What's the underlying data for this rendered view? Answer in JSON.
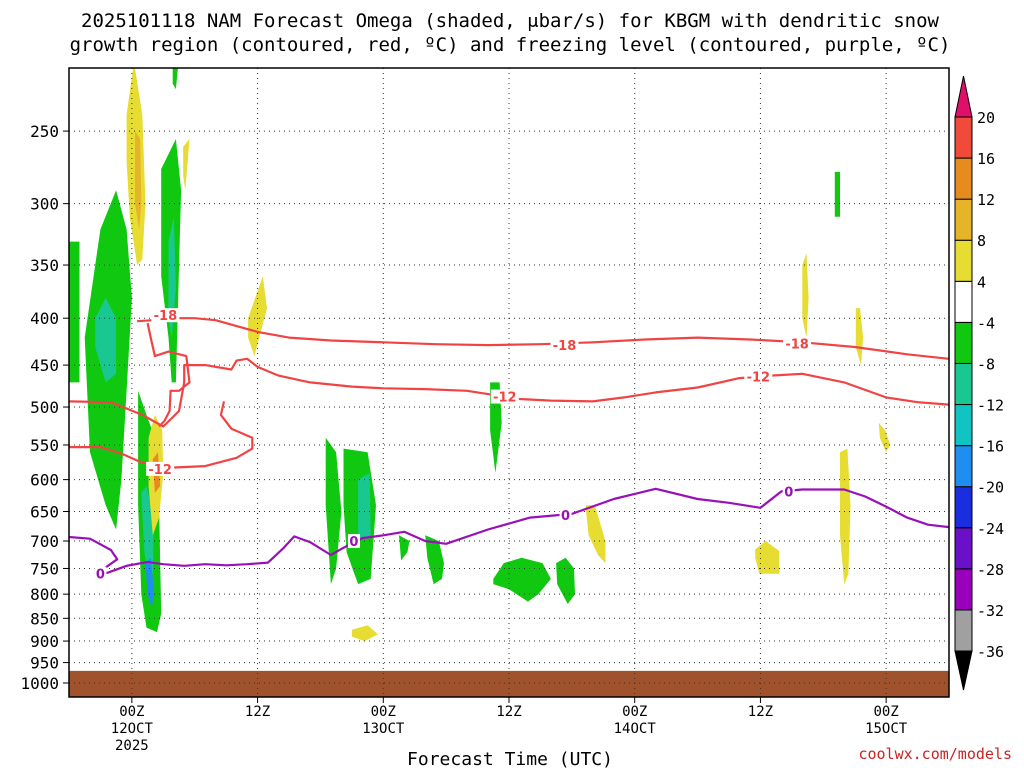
{
  "chart_data": {
    "type": "heatmap",
    "title_line1": "2025101118 NAM Forecast Omega (shaded, μbar/s) for KBGM with dendritic snow",
    "title_line2": "growth region (contoured, red, ºC) and freezing level (contoured, purple, ºC)",
    "xlabel": "Forecast Time (UTC)",
    "credit": "coolwx.com/models",
    "x_ticks": [
      {
        "hour": 6,
        "label": "00Z",
        "sub": "12OCT",
        "sub2": "2025"
      },
      {
        "hour": 18,
        "label": "12Z",
        "sub": "",
        "sub2": ""
      },
      {
        "hour": 30,
        "label": "00Z",
        "sub": "13OCT",
        "sub2": ""
      },
      {
        "hour": 42,
        "label": "12Z",
        "sub": "",
        "sub2": ""
      },
      {
        "hour": 54,
        "label": "00Z",
        "sub": "14OCT",
        "sub2": ""
      },
      {
        "hour": 66,
        "label": "12Z",
        "sub": "",
        "sub2": ""
      },
      {
        "hour": 78,
        "label": "00Z",
        "sub": "15OCT",
        "sub2": ""
      }
    ],
    "xlim": [
      0,
      84
    ],
    "ylim": [
      1000,
      200
    ],
    "y_scale": "log-pressure",
    "y_ticks": [
      250,
      300,
      350,
      400,
      450,
      500,
      550,
      600,
      650,
      700,
      750,
      800,
      850,
      900,
      950,
      1000
    ],
    "grid": true,
    "colorbar": {
      "levels": [
        -36,
        -32,
        -28,
        -24,
        -20,
        -16,
        -12,
        -8,
        -4,
        4,
        8,
        12,
        16,
        20
      ],
      "colors": [
        "#a0a0a0",
        "#9900bb",
        "#6a10c8",
        "#1a2ee0",
        "#1e8ef0",
        "#10c4c4",
        "#18c890",
        "#10c810",
        "#ffffff",
        "#e6dc32",
        "#e6b428",
        "#e68c1e",
        "#f04a3a"
      ],
      "under_color": "#000000",
      "over_color": "#e0106a"
    },
    "shading": [
      {
        "color": "#10c810",
        "x": [
          0,
          1,
          1,
          0
        ],
        "p": [
          330,
          330,
          470,
          470
        ]
      },
      {
        "color": "#10c810",
        "x": [
          1.5,
          3,
          4.5,
          5.5,
          6,
          5.5,
          5,
          4.5,
          3.5,
          2,
          1.5
        ],
        "p": [
          420,
          320,
          290,
          320,
          380,
          480,
          600,
          680,
          640,
          560,
          420
        ]
      },
      {
        "color": "#18c890",
        "x": [
          2.5,
          3.5,
          4.5,
          4.5,
          3.5,
          2.5
        ],
        "p": [
          400,
          380,
          400,
          460,
          470,
          430
        ]
      },
      {
        "color": "#e6dc32",
        "x": [
          5.5,
          6.2,
          7,
          7.3,
          7,
          6.5,
          5.8,
          5.5
        ],
        "p": [
          240,
          210,
          240,
          300,
          345,
          350,
          310,
          270
        ]
      },
      {
        "color": "#e6b428",
        "x": [
          6.3,
          6.8,
          6.9,
          6.7,
          6.3
        ],
        "p": [
          250,
          255,
          300,
          320,
          300
        ]
      },
      {
        "color": "#10c810",
        "x": [
          8.8,
          10.2,
          10.7,
          10.2,
          9.8,
          9.5,
          8.8
        ],
        "p": [
          275,
          255,
          290,
          470,
          470,
          420,
          360
        ]
      },
      {
        "color": "#18c890",
        "x": [
          9.5,
          10.0,
          10.2,
          9.8,
          9.5
        ],
        "p": [
          330,
          310,
          370,
          420,
          400
        ]
      },
      {
        "color": "#10c810",
        "x": [
          9.9,
          10.2,
          10.4,
          10.2,
          9.9
        ],
        "p": [
          208,
          205,
          213,
          225,
          222
        ]
      },
      {
        "color": "#e6dc32",
        "x": [
          10.9,
          11.5,
          11.1,
          10.9
        ],
        "p": [
          260,
          255,
          290,
          280
        ]
      },
      {
        "color": "#10c810",
        "x": [
          6.6,
          7.4,
          8.2,
          8.6,
          8.8,
          8.4,
          7.4,
          6.9,
          6.6
        ],
        "p": [
          480,
          510,
          540,
          640,
          840,
          880,
          870,
          800,
          640
        ]
      },
      {
        "color": "#18c890",
        "x": [
          6.9,
          7.4,
          8.1,
          8.0,
          7.6,
          7.2
        ],
        "p": [
          620,
          610,
          660,
          760,
          770,
          720
        ]
      },
      {
        "color": "#1e8ef0",
        "x": [
          7.3,
          7.8,
          8.1,
          7.9,
          7.5
        ],
        "p": [
          740,
          730,
          790,
          830,
          800
        ]
      },
      {
        "color": "#e6dc32",
        "x": [
          7.6,
          8.2,
          8.9,
          9.0,
          8.6,
          8.0,
          7.6
        ],
        "p": [
          540,
          510,
          530,
          590,
          660,
          690,
          610
        ]
      },
      {
        "color": "#e68c1e",
        "x": [
          8.0,
          8.5,
          8.7,
          8.2
        ],
        "p": [
          570,
          560,
          610,
          620
        ]
      },
      {
        "color": "#e6dc32",
        "x": [
          17.1,
          18.5,
          18.9,
          17.7,
          17.1
        ],
        "p": [
          400,
          360,
          390,
          440,
          420
        ]
      },
      {
        "color": "#10c810",
        "x": [
          24.5,
          25.5,
          26,
          25.5,
          25,
          24.5
        ],
        "p": [
          540,
          560,
          650,
          750,
          780,
          640
        ]
      },
      {
        "color": "#10c810",
        "x": [
          26.2,
          28.5,
          29.3,
          28.8,
          27.6,
          26.5,
          26.2
        ],
        "p": [
          555,
          560,
          640,
          770,
          780,
          720,
          640
        ]
      },
      {
        "color": "#18c890",
        "x": [
          27.6,
          28.7,
          28.8,
          27.6
        ],
        "p": [
          600,
          590,
          690,
          700
        ]
      },
      {
        "color": "#e6dc32",
        "x": [
          27,
          28.5,
          29.5,
          28.2,
          27
        ],
        "p": [
          875,
          865,
          885,
          900,
          890
        ]
      },
      {
        "color": "#10c810",
        "x": [
          31.5,
          32.5,
          32.3,
          31.7
        ],
        "p": [
          690,
          700,
          720,
          735
        ]
      },
      {
        "color": "#10c810",
        "x": [
          34,
          35.3,
          35.8,
          35.6,
          34.8,
          34.2
        ],
        "p": [
          690,
          700,
          740,
          770,
          780,
          730
        ]
      },
      {
        "color": "#10c810",
        "x": [
          40.2,
          41.1,
          41.3,
          40.7,
          40.2
        ],
        "p": [
          470,
          470,
          520,
          590,
          530
        ]
      },
      {
        "color": "#10c810",
        "x": [
          40.5,
          41.5,
          43.2,
          45.2,
          46,
          44.8,
          43.8,
          42,
          40.5
        ],
        "p": [
          770,
          740,
          730,
          740,
          770,
          800,
          815,
          790,
          780
        ]
      },
      {
        "color": "#10c810",
        "x": [
          46.5,
          47.4,
          48.2,
          48.3,
          47.6,
          46.6
        ],
        "p": [
          740,
          730,
          750,
          800,
          820,
          780
        ]
      },
      {
        "color": "#e6dc32",
        "x": [
          49.3,
          50.2,
          51.2,
          51.2,
          50.5,
          49.6
        ],
        "p": [
          640,
          640,
          700,
          740,
          725,
          690
        ]
      },
      {
        "color": "#e6dc32",
        "x": [
          65.5,
          66.5,
          67.8,
          67.8,
          65.9,
          65.5
        ],
        "p": [
          715,
          700,
          718,
          760,
          760,
          730
        ]
      },
      {
        "color": "#e6dc32",
        "x": [
          70,
          70.4,
          70.6,
          70.4,
          70.0
        ],
        "p": [
          350,
          340,
          380,
          420,
          400
        ]
      },
      {
        "color": "#10c810",
        "x": [
          73.1,
          73.6,
          73.6,
          73.1
        ],
        "p": [
          277,
          277,
          310,
          310
        ]
      },
      {
        "color": "#e6dc32",
        "x": [
          75.1,
          75.5,
          75.8,
          75.6,
          75.1
        ],
        "p": [
          390,
          390,
          420,
          450,
          430
        ]
      },
      {
        "color": "#e6dc32",
        "x": [
          73.6,
          74.3,
          74.6,
          74.4,
          74.0,
          73.6
        ],
        "p": [
          560,
          555,
          640,
          760,
          780,
          690
        ]
      },
      {
        "color": "#e6dc32",
        "x": [
          77.3,
          77.9,
          78.4,
          78.0,
          77.4
        ],
        "p": [
          520,
          530,
          550,
          560,
          540
        ]
      }
    ],
    "surface": {
      "color": "#a0522d",
      "p_top": 970
    },
    "contours": [
      {
        "name": "-18",
        "color": "#f04444",
        "x": [
          6.5,
          8,
          10,
          12,
          14,
          16,
          18,
          21,
          25,
          30,
          35,
          40,
          45,
          50,
          55,
          60,
          65,
          70,
          75,
          80,
          84
        ],
        "p": [
          403,
          402,
          400,
          400,
          402,
          408,
          414,
          420,
          423,
          425,
          427,
          428,
          427,
          425,
          422,
          420,
          422,
          425,
          430,
          438,
          443
        ]
      },
      {
        "name": "-18b",
        "color": "#f04444",
        "x": [
          7.5,
          7.8,
          8.2,
          9.5,
          11.2,
          11.5,
          10.5,
          9.7,
          9.6,
          9.1,
          8.6
        ],
        "p": [
          405,
          420,
          440,
          435,
          440,
          470,
          480,
          480,
          505,
          518,
          525
        ]
      },
      {
        "name": "-12",
        "color": "#f04444",
        "x": [
          0,
          4,
          7,
          9,
          10.5,
          11,
          11,
          13,
          15.5,
          16,
          17,
          18,
          20,
          23,
          27,
          30,
          34,
          38,
          40,
          43,
          46,
          50,
          53,
          56,
          60,
          64,
          67,
          70,
          74,
          78,
          81,
          84
        ],
        "p": [
          493,
          494,
          510,
          525,
          505,
          470,
          450,
          450,
          455,
          445,
          443,
          452,
          462,
          470,
          475,
          477,
          478,
          480,
          484,
          490,
          492,
          493,
          488,
          482,
          476,
          465,
          462,
          460,
          470,
          488,
          494,
          497
        ]
      },
      {
        "name": "-12b",
        "color": "#f04444",
        "x": [
          0,
          3,
          5,
          7,
          10,
          13,
          16,
          17.5,
          17.5,
          15.5,
          14.5,
          14.8
        ],
        "p": [
          553,
          553,
          562,
          575,
          582,
          580,
          568,
          555,
          540,
          528,
          510,
          493
        ]
      },
      {
        "name": "0",
        "color": "#9a10b8",
        "x": [
          0,
          2,
          4,
          4.6,
          3.0,
          2.8,
          3.7,
          5.5,
          7.5,
          9,
          11,
          13,
          15,
          17,
          19,
          20.5,
          21.5,
          23,
          25,
          26,
          28,
          30,
          32,
          34,
          36,
          40,
          44,
          48,
          52,
          56,
          60,
          63,
          66,
          68,
          70,
          72,
          74,
          76,
          78,
          80,
          82,
          84
        ],
        "p": [
          693,
          696,
          716,
          733,
          755,
          760,
          758,
          745,
          738,
          742,
          745,
          742,
          744,
          742,
          739,
          712,
          692,
          702,
          725,
          714,
          695,
          690,
          684,
          700,
          705,
          680,
          660,
          654,
          630,
          614,
          630,
          636,
          644,
          618,
          615,
          615,
          615,
          626,
          642,
          660,
          672,
          676
        ]
      }
    ],
    "contour_labels": [
      {
        "text": "-18",
        "x": 9.2,
        "p": 397,
        "color": "#f04444"
      },
      {
        "text": "-18",
        "x": 47.3,
        "p": 428,
        "color": "#f04444"
      },
      {
        "text": "-18",
        "x": 69.5,
        "p": 426,
        "color": "#f04444"
      },
      {
        "text": "-12",
        "x": 41.6,
        "p": 487,
        "color": "#f04444"
      },
      {
        "text": "-12",
        "x": 65.8,
        "p": 463,
        "color": "#f04444"
      },
      {
        "text": "-12",
        "x": 8.7,
        "p": 584,
        "color": "#f04444"
      },
      {
        "text": "0",
        "x": 47.4,
        "p": 656,
        "color": "#9a10b8"
      },
      {
        "text": "0",
        "x": 68.7,
        "p": 618,
        "color": "#9a10b8"
      },
      {
        "text": "0",
        "x": 27.2,
        "p": 700,
        "color": "#9a10b8"
      },
      {
        "text": "0",
        "x": 3.0,
        "p": 760,
        "color": "#9a10b8"
      }
    ]
  }
}
